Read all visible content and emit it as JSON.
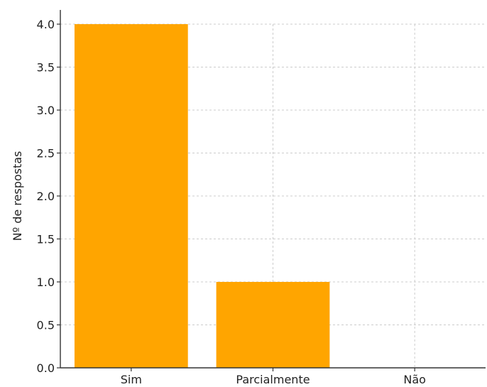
{
  "chart_data": {
    "type": "bar",
    "title": "",
    "xlabel": "",
    "ylabel": "Nº de respostas",
    "categories": [
      "Sim",
      "Parcialmente",
      "Não"
    ],
    "values": [
      4,
      1,
      0
    ],
    "ylim": [
      0,
      4.0
    ],
    "yticks": [
      "0.0",
      "0.5",
      "1.0",
      "1.5",
      "2.0",
      "2.5",
      "3.0",
      "3.5",
      "4.0"
    ],
    "grid": true,
    "bar_color": "#FFA500"
  }
}
